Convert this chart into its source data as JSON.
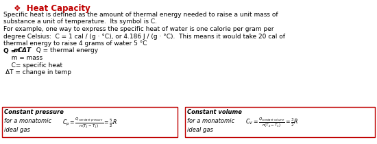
{
  "title": "❖  Heat Capacity",
  "title_color": "#c00000",
  "body_color": "#000000",
  "bg_color": "#ffffff",
  "body_text_lines": [
    "Specific heat is defined as the amount of thermal energy needed to raise a unit mass of",
    "substance a unit of temperature.  Its symbol is C.",
    "For example, one way to express the specific heat of water is one calorie per gram per",
    "degree Celsius:  C = 1 cal / (g · °C), or 4.186 J / (g · °C).  This means it would take 20 cal of",
    "thermal energy to raise 4 grams of water 5 °C"
  ],
  "formula_line1": "Q = m C",
  "formula_delta": "Δ",
  "formula_line2": "T   Q = thermal energy",
  "sub_lines": [
    "   m = mass",
    "   C= specific heat",
    "ΔT = change in temp"
  ],
  "box1_title": "Constant pressure",
  "box1_line2": "for a monatomic",
  "box1_line3": "ideal gas",
  "box2_title": "Constant volume",
  "box2_line2": "for a monatomic",
  "box2_line3": "ideal gas",
  "box_border_color": "#c00000",
  "font_size_body": 6.5,
  "font_size_title": 8.5,
  "font_size_box": 6.0,
  "font_size_formula": 6.5
}
